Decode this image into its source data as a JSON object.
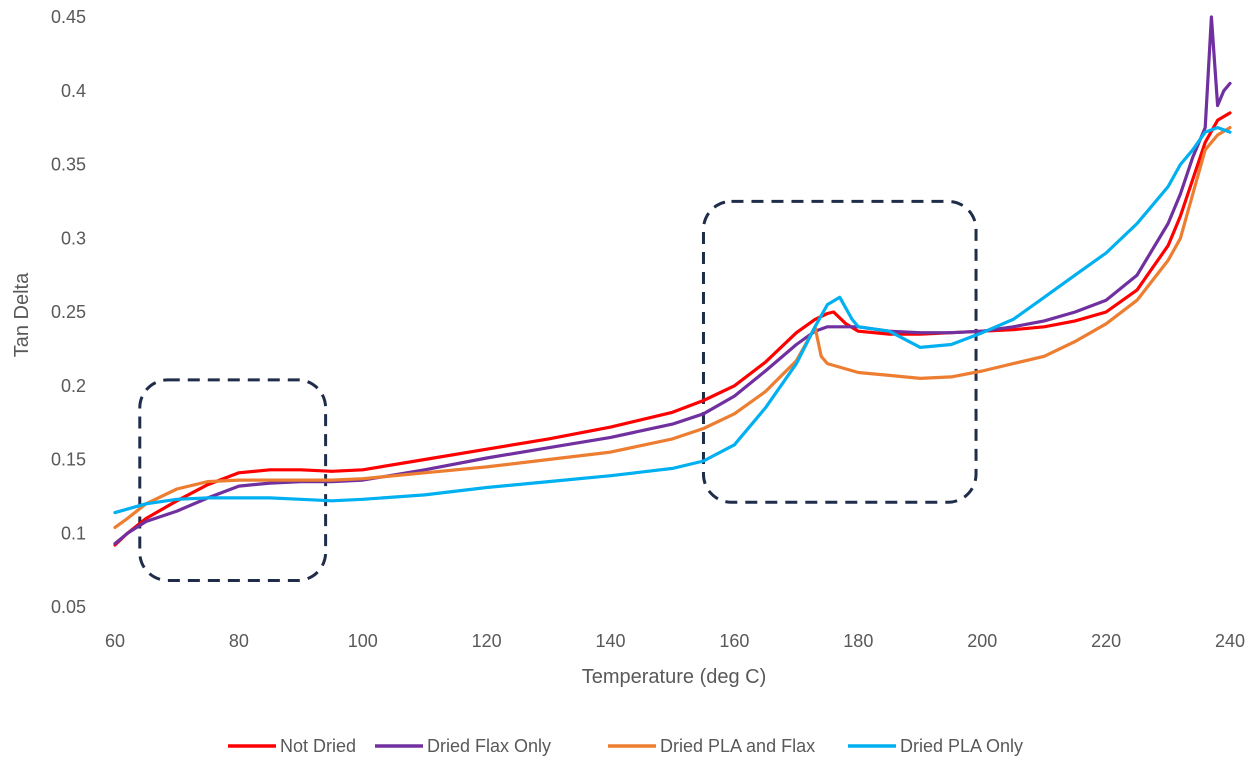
{
  "chart_data": {
    "type": "line",
    "title": "",
    "xlabel": "Temperature (deg C)",
    "ylabel": "Tan Delta",
    "xlim": [
      60,
      240
    ],
    "ylim": [
      0.05,
      0.45
    ],
    "xticks": [
      60,
      80,
      100,
      120,
      140,
      160,
      180,
      200,
      220,
      240
    ],
    "yticks": [
      0.05,
      0.1,
      0.15,
      0.2,
      0.25,
      0.3,
      0.35,
      0.4,
      0.45
    ],
    "xtick_labels": [
      "60",
      "80",
      "100",
      "120",
      "140",
      "160",
      "180",
      "200",
      "220",
      "240"
    ],
    "ytick_labels": [
      "0.05",
      "0.1",
      "0.15",
      "0.2",
      "0.25",
      "0.3",
      "0.35",
      "0.4",
      "0.45"
    ],
    "grid": false,
    "legend_position": "bottom",
    "series": [
      {
        "name": "Not Dried",
        "color": "#ff0000",
        "x": [
          60,
          62,
          65,
          70,
          75,
          80,
          85,
          90,
          95,
          100,
          110,
          120,
          130,
          140,
          150,
          155,
          160,
          165,
          170,
          173,
          175,
          176,
          178,
          180,
          185,
          190,
          195,
          200,
          205,
          210,
          215,
          220,
          225,
          230,
          232,
          234,
          236,
          238,
          240
        ],
        "y": [
          0.092,
          0.1,
          0.11,
          0.122,
          0.133,
          0.141,
          0.143,
          0.143,
          0.142,
          0.143,
          0.15,
          0.157,
          0.164,
          0.172,
          0.182,
          0.19,
          0.2,
          0.216,
          0.236,
          0.245,
          0.249,
          0.25,
          0.242,
          0.237,
          0.235,
          0.235,
          0.236,
          0.237,
          0.238,
          0.24,
          0.244,
          0.25,
          0.265,
          0.295,
          0.315,
          0.34,
          0.365,
          0.38,
          0.385
        ]
      },
      {
        "name": "Dried Flax Only",
        "color": "#7030a0",
        "x": [
          60,
          62,
          65,
          70,
          75,
          80,
          85,
          90,
          95,
          100,
          110,
          120,
          130,
          140,
          150,
          155,
          160,
          165,
          170,
          173,
          175,
          178,
          180,
          185,
          190,
          195,
          200,
          205,
          210,
          215,
          220,
          225,
          230,
          232,
          234,
          236,
          237,
          238,
          239,
          240
        ],
        "y": [
          0.093,
          0.1,
          0.108,
          0.115,
          0.124,
          0.132,
          0.134,
          0.135,
          0.135,
          0.136,
          0.143,
          0.151,
          0.158,
          0.165,
          0.174,
          0.181,
          0.193,
          0.21,
          0.228,
          0.237,
          0.24,
          0.24,
          0.24,
          0.237,
          0.236,
          0.236,
          0.237,
          0.24,
          0.244,
          0.25,
          0.258,
          0.275,
          0.31,
          0.33,
          0.355,
          0.375,
          0.45,
          0.39,
          0.4,
          0.405
        ]
      },
      {
        "name": "Dried PLA and Flax",
        "color": "#ed7d31",
        "x": [
          60,
          62,
          65,
          70,
          75,
          80,
          85,
          90,
          95,
          100,
          110,
          120,
          130,
          140,
          150,
          155,
          160,
          165,
          170,
          172,
          173,
          174,
          175,
          180,
          185,
          190,
          195,
          200,
          205,
          210,
          215,
          220,
          225,
          230,
          232,
          234,
          236,
          238,
          240
        ],
        "y": [
          0.104,
          0.11,
          0.12,
          0.13,
          0.135,
          0.136,
          0.136,
          0.136,
          0.136,
          0.137,
          0.141,
          0.145,
          0.15,
          0.155,
          0.164,
          0.171,
          0.181,
          0.196,
          0.217,
          0.232,
          0.24,
          0.22,
          0.215,
          0.209,
          0.207,
          0.205,
          0.206,
          0.21,
          0.215,
          0.22,
          0.23,
          0.242,
          0.258,
          0.285,
          0.3,
          0.33,
          0.36,
          0.37,
          0.375
        ]
      },
      {
        "name": "Dried PLA Only",
        "color": "#00b0f0",
        "x": [
          60,
          65,
          70,
          75,
          80,
          85,
          90,
          95,
          100,
          110,
          120,
          130,
          140,
          150,
          155,
          160,
          165,
          170,
          173,
          175,
          177,
          179,
          180,
          185,
          190,
          195,
          200,
          205,
          210,
          215,
          220,
          225,
          230,
          232,
          234,
          236,
          238,
          240
        ],
        "y": [
          0.114,
          0.12,
          0.123,
          0.124,
          0.124,
          0.124,
          0.123,
          0.122,
          0.123,
          0.126,
          0.131,
          0.135,
          0.139,
          0.144,
          0.149,
          0.16,
          0.185,
          0.215,
          0.24,
          0.255,
          0.26,
          0.245,
          0.24,
          0.237,
          0.226,
          0.228,
          0.236,
          0.245,
          0.26,
          0.275,
          0.29,
          0.31,
          0.335,
          0.35,
          0.36,
          0.372,
          0.375,
          0.372
        ]
      }
    ],
    "annotations": [
      {
        "shape": "dashed-rounded-rect",
        "x_range": [
          64,
          94
        ],
        "y_range": [
          0.068,
          0.204
        ],
        "color": "#1f2d4a"
      },
      {
        "shape": "dashed-rounded-rect",
        "x_range": [
          155,
          199
        ],
        "y_range": [
          0.121,
          0.325
        ],
        "color": "#1f2d4a"
      }
    ]
  }
}
